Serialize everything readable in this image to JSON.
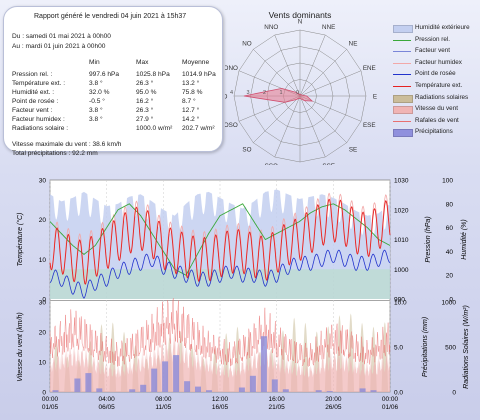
{
  "report": {
    "title": "Rapport généré le vendredi 04 juin 2021 à 15h37",
    "from": "Du : samedi 01 mai 2021 à 00h00",
    "to": "Au : mardi 01 juin 2021 à 00h00",
    "headers": [
      "Min",
      "Max",
      "Moyenne"
    ],
    "rows": [
      {
        "label": "Pression rel. :",
        "min": "997.6 hPa",
        "max": "1025.8 hPa",
        "avg": "1014.9 hPa"
      },
      {
        "label": "Température ext. :",
        "min": "3.8 °",
        "max": "26.3 °",
        "avg": "13.2 °"
      },
      {
        "label": "Humidité ext. :",
        "min": "32.0 %",
        "max": "95.0 %",
        "avg": "75.8 %"
      },
      {
        "label": "Point de rosée :",
        "min": "-0.5 °",
        "max": "16.2 °",
        "avg": "8.7 °"
      },
      {
        "label": "Facteur vent :",
        "min": "3.8 °",
        "max": "26.3 °",
        "avg": "12.7 °"
      },
      {
        "label": "Facteur humidex :",
        "min": "3.8 °",
        "max": "27.9 °",
        "avg": "14.2 °"
      },
      {
        "label": "Radiations solaire :",
        "min": "",
        "max": "1000.0 w/m²",
        "avg": "202.7 w/m²"
      }
    ],
    "wind_max": "Vitesse maximale du vent : 38.6 km/h",
    "total_precip": "Total précipitations : 92.2 mm"
  },
  "chart_data": [
    {
      "type": "radar",
      "title": "Vents dominants",
      "directions": [
        "N",
        "NNE",
        "NE",
        "ENE",
        "E",
        "ESE",
        "SE",
        "SSE",
        "S",
        "SSO",
        "SO",
        "OSO",
        "O",
        "ONO",
        "NO",
        "NNO"
      ],
      "ring_labels": [
        "0",
        "1",
        "2",
        "3",
        "4"
      ],
      "values": [
        0.1,
        0.1,
        0.1,
        0.15,
        0.4,
        0.8,
        0.4,
        0.2,
        0.15,
        0.15,
        0.3,
        1.0,
        3.4,
        1.2,
        0.3,
        0.1
      ]
    },
    {
      "type": "line",
      "title": "",
      "xlabel": "",
      "ylabel_left": "Température (°C)",
      "ylabel_right1": "Pression (hPa)",
      "ylabel_right2": "Humidité (%)",
      "ylim_left": [
        0,
        30
      ],
      "yticks_left": [
        "0",
        "10",
        "20",
        "30"
      ],
      "ylim_pressure": [
        990,
        1030
      ],
      "yticks_pressure": [
        "990",
        "1000",
        "1010",
        "1020",
        "1030"
      ],
      "ylim_humidity": [
        0,
        100
      ],
      "yticks_humidity": [
        "0",
        "20",
        "40",
        "60",
        "80",
        "100"
      ],
      "days": 31,
      "series": [
        {
          "name": "Humidité extérieure",
          "color": "#c3cff0",
          "unit": "%",
          "values": [
            88,
            82,
            85,
            90,
            84,
            78,
            80,
            86,
            88,
            82,
            75,
            70,
            80,
            88,
            90,
            85,
            80,
            76,
            82,
            90,
            92,
            88,
            84,
            86,
            88,
            85,
            80,
            74,
            70,
            72,
            80
          ]
        },
        {
          "name": "Pression rel.",
          "color": "#3aa83a",
          "unit": "hPa",
          "values": [
            1016,
            1012,
            1008,
            1005,
            1008,
            1014,
            1020,
            1022,
            1018,
            1012,
            1006,
            1000,
            998,
            1005,
            1012,
            1018,
            1020,
            1022,
            1016,
            1010,
            1012,
            1014,
            1016,
            1019,
            1021,
            1022,
            1020,
            1017,
            1014,
            1010,
            1008
          ]
        },
        {
          "name": "Température ext.",
          "color": "#e52222",
          "unit": "°C",
          "values": [
            13,
            12,
            10,
            9,
            11,
            13,
            15,
            17,
            18,
            16,
            13,
            12,
            11,
            10,
            10,
            11,
            12,
            12,
            11,
            10,
            12,
            14,
            15,
            17,
            19,
            20,
            19,
            17,
            16,
            18,
            20
          ]
        },
        {
          "name": "Point de rosée",
          "color": "#2233cc",
          "unit": "°C",
          "values": [
            6,
            5,
            3,
            2,
            4,
            5,
            7,
            8,
            9,
            10,
            8,
            7,
            6,
            5,
            5,
            6,
            7,
            6,
            6,
            5,
            6,
            8,
            9,
            9,
            10,
            11,
            10,
            9,
            9,
            10,
            11
          ]
        },
        {
          "name": "Facteur humidex",
          "color": "#f2a8a8",
          "unit": "°C",
          "values": [
            14,
            13,
            11,
            10,
            12,
            14,
            16,
            18,
            19,
            17,
            14,
            13,
            12,
            11,
            11,
            12,
            13,
            13,
            12,
            11,
            13,
            15,
            16,
            18,
            20,
            21,
            20,
            18,
            17,
            19,
            21
          ]
        }
      ]
    },
    {
      "type": "bar",
      "title": "",
      "xlabel": "",
      "ylabel_left": "Vitesse du vent (km/h)",
      "ylabel_right1": "Précipitations (mm)",
      "ylabel_right2": "Radiations Solaires (W/m²)",
      "ylim_left": [
        0,
        30
      ],
      "yticks_left": [
        "0",
        "10",
        "20",
        "30"
      ],
      "ylim_precip": [
        0,
        10
      ],
      "yticks_precip": [
        "0.0",
        "5.0",
        "10.0"
      ],
      "ylim_solar": [
        0,
        1000
      ],
      "yticks_solar": [
        "0",
        "500",
        "1000"
      ],
      "x_tick_labels": [
        [
          "00:00",
          "01/05"
        ],
        [
          "04:00",
          "06/05"
        ],
        [
          "08:00",
          "11/05"
        ],
        [
          "12:00",
          "16/05"
        ],
        [
          "16:00",
          "21/05"
        ],
        [
          "20:00",
          "26/05"
        ],
        [
          "00:00",
          "01/06"
        ]
      ],
      "series": [
        {
          "name": "Radiations solaires",
          "color": "#b8a888",
          "unit": "W/m²",
          "values": [
            650,
            500,
            300,
            400,
            700,
            800,
            750,
            600,
            450,
            300,
            500,
            700,
            650,
            400,
            350,
            600,
            700,
            750,
            500,
            400,
            550,
            800,
            850,
            700,
            650,
            800,
            900,
            850,
            700,
            750,
            800
          ]
        },
        {
          "name": "Vitesse du vent",
          "color": "#f0b4b4",
          "unit": "km/h",
          "values": [
            12,
            14,
            16,
            15,
            12,
            10,
            9,
            11,
            13,
            15,
            18,
            20,
            16,
            14,
            12,
            10,
            9,
            11,
            14,
            16,
            13,
            11,
            10,
            9,
            12,
            14,
            13,
            11,
            10,
            12,
            14
          ]
        },
        {
          "name": "Rafales de vent",
          "color": "#e87070",
          "unit": "km/h",
          "values": [
            20,
            22,
            26,
            24,
            20,
            17,
            15,
            18,
            21,
            24,
            28,
            30,
            26,
            22,
            19,
            17,
            15,
            18,
            22,
            26,
            21,
            18,
            16,
            15,
            19,
            22,
            21,
            18,
            16,
            19,
            22
          ]
        },
        {
          "name": "Précipitations",
          "color": "#8a8ad8",
          "unit": "mm",
          "values": [
            0.2,
            0,
            1.5,
            2.1,
            0.4,
            0,
            0,
            0.3,
            0.8,
            2.6,
            3.4,
            4.1,
            1.2,
            0.6,
            0.2,
            0,
            0,
            0.5,
            1.8,
            6.2,
            1.4,
            0.3,
            0,
            0,
            0.2,
            0.1,
            0,
            0,
            0.4,
            0.2,
            0
          ]
        }
      ]
    }
  ],
  "legend": [
    {
      "label": "Humidité extérieure",
      "color": "#c3cff0",
      "kind": "fill"
    },
    {
      "label": "Pression rel.",
      "color": "#3aa83a",
      "kind": "line"
    },
    {
      "label": "Facteur vent",
      "color": "#7a86d8",
      "kind": "line"
    },
    {
      "label": "Facteur humidex",
      "color": "#f2a8a8",
      "kind": "line"
    },
    {
      "label": "Point de rosée",
      "color": "#2233cc",
      "kind": "line"
    },
    {
      "label": "Température ext.",
      "color": "#e52222",
      "kind": "line"
    },
    {
      "label": "Radiations solaires",
      "color": "#cbbd9a",
      "kind": "fill"
    },
    {
      "label": "Vitesse du vent",
      "color": "#f0b4b4",
      "kind": "fill"
    },
    {
      "label": "Rafales de vent",
      "color": "#e87070",
      "kind": "line"
    },
    {
      "label": "Précipitations",
      "color": "#9090dd",
      "kind": "fill"
    }
  ]
}
